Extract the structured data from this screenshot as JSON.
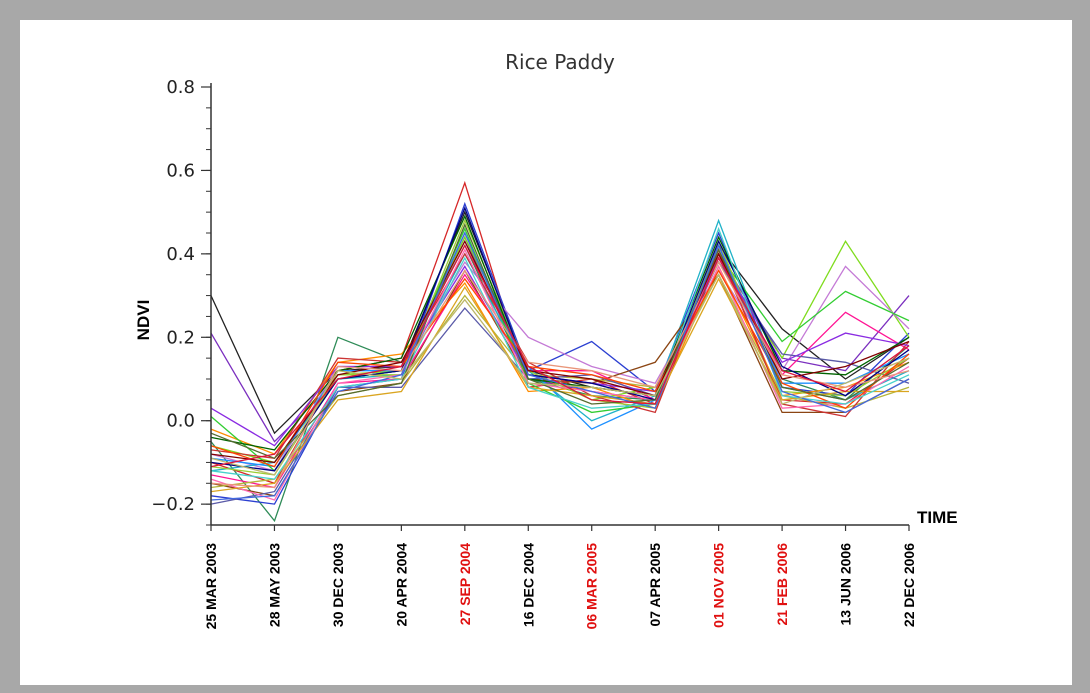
{
  "chart_data": {
    "type": "line",
    "title": "Rice Paddy",
    "xlabel": "TIME",
    "ylabel": "NDVI",
    "ylim": [
      -0.25,
      0.8
    ],
    "yticks": [
      -0.2,
      0.0,
      0.2,
      0.4,
      0.6,
      0.8
    ],
    "ytick_labels": [
      "−0.2",
      "0.0",
      "0.2",
      "0.4",
      "0.6",
      "0.8"
    ],
    "categories": [
      "25 MAR 2003",
      "28 MAY 2003",
      "30 DEC 2003",
      "20 APR 2004",
      "27 SEP 2004",
      "16 DEC 2004",
      "06 MAR 2005",
      "07 APR 2005",
      "01 NOV 2005",
      "21 FEB 2006",
      "13 JUN 2006",
      "22 DEC 2006"
    ],
    "highlighted_categories": [
      "27 SEP 2004",
      "06 MAR 2005",
      "01 NOV 2005",
      "21 FEB 2006"
    ],
    "highlight_color": "#e01010",
    "grid": false,
    "series": [
      {
        "color": "#222222",
        "values": [
          0.3,
          -0.03,
          0.12,
          0.13,
          0.5,
          0.12,
          0.08,
          0.06,
          0.42,
          0.22,
          0.1,
          0.2
        ]
      },
      {
        "color": "#7b2fbf",
        "values": [
          0.21,
          -0.05,
          0.1,
          0.12,
          0.44,
          0.1,
          0.07,
          0.05,
          0.4,
          0.15,
          0.12,
          0.3
        ]
      },
      {
        "color": "#2e8b57",
        "values": [
          -0.05,
          -0.24,
          0.2,
          0.14,
          0.42,
          0.1,
          0.06,
          0.05,
          0.41,
          0.1,
          0.05,
          0.18
        ]
      },
      {
        "color": "#d62728",
        "values": [
          -0.1,
          -0.15,
          0.12,
          0.15,
          0.57,
          0.08,
          0.1,
          0.04,
          0.4,
          0.05,
          0.04,
          0.15
        ]
      },
      {
        "color": "#2b3fd1",
        "values": [
          -0.18,
          -0.2,
          0.08,
          0.1,
          0.52,
          0.12,
          0.19,
          0.07,
          0.45,
          0.08,
          0.06,
          0.21
        ]
      },
      {
        "color": "#7fdc1e",
        "values": [
          -0.06,
          -0.1,
          0.11,
          0.12,
          0.44,
          0.13,
          0.05,
          0.08,
          0.38,
          0.15,
          0.43,
          0.2
        ]
      },
      {
        "color": "#c47ad6",
        "values": [
          -0.08,
          -0.12,
          0.13,
          0.13,
          0.38,
          0.2,
          0.13,
          0.09,
          0.36,
          0.12,
          0.37,
          0.22
        ]
      },
      {
        "color": "#20b2c8",
        "values": [
          -0.12,
          -0.1,
          0.1,
          0.11,
          0.4,
          0.12,
          0.0,
          0.06,
          0.48,
          0.08,
          0.05,
          0.12
        ]
      },
      {
        "color": "#8b4513",
        "values": [
          -0.15,
          -0.18,
          0.07,
          0.09,
          0.36,
          0.1,
          0.09,
          0.14,
          0.35,
          0.02,
          0.02,
          0.1
        ]
      },
      {
        "color": "#ff8c00",
        "values": [
          -0.02,
          -0.08,
          0.14,
          0.16,
          0.33,
          0.07,
          0.08,
          0.03,
          0.37,
          0.06,
          0.08,
          0.14
        ]
      },
      {
        "color": "#ff1493",
        "values": [
          -0.13,
          -0.16,
          0.09,
          0.1,
          0.35,
          0.12,
          0.12,
          0.05,
          0.39,
          0.11,
          0.26,
          0.17
        ]
      },
      {
        "color": "#1e90ff",
        "values": [
          -0.09,
          -0.11,
          0.12,
          0.12,
          0.45,
          0.13,
          -0.02,
          0.05,
          0.42,
          0.09,
          0.09,
          0.16
        ]
      },
      {
        "color": "#b5b53a",
        "values": [
          -0.16,
          -0.14,
          0.06,
          0.09,
          0.3,
          0.11,
          0.1,
          0.08,
          0.35,
          0.06,
          0.03,
          0.08
        ]
      },
      {
        "color": "#32cd32",
        "values": [
          0.01,
          -0.12,
          0.1,
          0.12,
          0.46,
          0.09,
          0.02,
          0.04,
          0.4,
          0.19,
          0.31,
          0.24
        ]
      },
      {
        "color": "#5a5aa8",
        "values": [
          -0.2,
          -0.17,
          0.08,
          0.08,
          0.27,
          0.1,
          0.11,
          0.06,
          0.38,
          0.16,
          0.14,
          0.09
        ]
      },
      {
        "color": "#cc3333",
        "values": [
          -0.07,
          -0.09,
          0.15,
          0.14,
          0.4,
          0.14,
          0.06,
          0.02,
          0.41,
          0.04,
          0.01,
          0.19
        ]
      },
      {
        "color": "#9acd32",
        "values": [
          -0.11,
          -0.13,
          0.11,
          0.11,
          0.48,
          0.12,
          0.05,
          0.03,
          0.43,
          0.07,
          0.06,
          0.15
        ]
      },
      {
        "color": "#8a2be2",
        "values": [
          0.03,
          -0.06,
          0.13,
          0.13,
          0.37,
          0.11,
          0.09,
          0.07,
          0.39,
          0.14,
          0.21,
          0.18
        ]
      },
      {
        "color": "#ff69b4",
        "values": [
          -0.14,
          -0.19,
          0.09,
          0.11,
          0.41,
          0.09,
          0.07,
          0.05,
          0.37,
          0.03,
          0.04,
          0.13
        ]
      },
      {
        "color": "#006400",
        "values": [
          -0.04,
          -0.07,
          0.12,
          0.15,
          0.49,
          0.1,
          0.08,
          0.06,
          0.44,
          0.12,
          0.11,
          0.2
        ]
      },
      {
        "color": "#daa520",
        "values": [
          -0.17,
          -0.15,
          0.05,
          0.07,
          0.32,
          0.08,
          0.06,
          0.04,
          0.34,
          0.05,
          0.07,
          0.07
        ]
      },
      {
        "color": "#000080",
        "values": [
          -0.1,
          -0.12,
          0.1,
          0.12,
          0.51,
          0.11,
          0.09,
          0.05,
          0.43,
          0.13,
          0.06,
          0.17
        ]
      },
      {
        "color": "#ff4500",
        "values": [
          -0.06,
          -0.11,
          0.14,
          0.13,
          0.34,
          0.13,
          0.11,
          0.07,
          0.36,
          0.09,
          0.03,
          0.16
        ]
      },
      {
        "color": "#48d1cc",
        "values": [
          -0.12,
          -0.14,
          0.08,
          0.1,
          0.39,
          0.08,
          0.03,
          0.04,
          0.46,
          0.06,
          0.04,
          0.11
        ]
      },
      {
        "color": "#800000",
        "values": [
          -0.08,
          -0.1,
          0.11,
          0.14,
          0.43,
          0.12,
          0.1,
          0.06,
          0.4,
          0.1,
          0.13,
          0.19
        ]
      },
      {
        "color": "#556b2f",
        "values": [
          -0.03,
          -0.09,
          0.06,
          0.09,
          0.47,
          0.1,
          0.04,
          0.05,
          0.41,
          0.08,
          0.05,
          0.14
        ]
      },
      {
        "color": "#e9967a",
        "values": [
          -0.15,
          -0.16,
          0.13,
          0.12,
          0.36,
          0.14,
          0.12,
          0.08,
          0.38,
          0.11,
          0.08,
          0.12
        ]
      },
      {
        "color": "#4169e1",
        "values": [
          -0.19,
          -0.18,
          0.07,
          0.11,
          0.45,
          0.11,
          0.07,
          0.03,
          0.42,
          0.07,
          0.02,
          0.1
        ]
      },
      {
        "color": "#bdb76b",
        "values": [
          -0.09,
          -0.13,
          0.12,
          0.1,
          0.29,
          0.09,
          0.08,
          0.06,
          0.35,
          0.04,
          0.09,
          0.15
        ]
      },
      {
        "color": "#dc143c",
        "values": [
          -0.11,
          -0.08,
          0.1,
          0.13,
          0.42,
          0.13,
          0.05,
          0.04,
          0.39,
          0.12,
          0.07,
          0.18
        ]
      }
    ]
  }
}
